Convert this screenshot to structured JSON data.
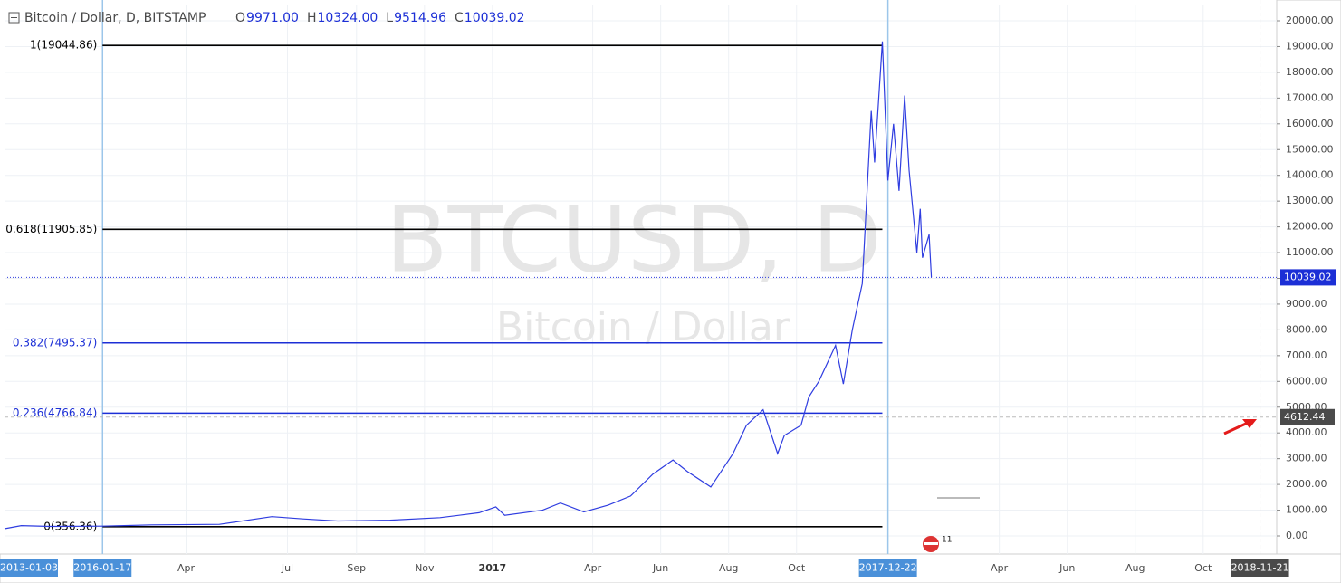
{
  "chart_data": {
    "type": "line",
    "title": "Bitcoin / Dollar, D, BITSTAMP",
    "ohlc": [
      {
        "key": "O",
        "value": "9971.00"
      },
      {
        "key": "H",
        "value": "10324.00"
      },
      {
        "key": "L",
        "value": "9514.96"
      },
      {
        "key": "C",
        "value": "10039.02"
      }
    ],
    "watermark": {
      "symbol": "BTCUSD, D",
      "name": "Bitcoin / Dollar"
    },
    "series": [
      {
        "name": "BTCUSD",
        "color": "#2f3de0",
        "x": [
          "2015-10-21",
          "2015-11-05",
          "2015-12-01",
          "2016-01-17",
          "2016-03-01",
          "2016-05-01",
          "2016-06-17",
          "2016-07-15",
          "2016-08-15",
          "2016-10-01",
          "2016-11-15",
          "2016-12-20",
          "2017-01-04",
          "2017-01-12",
          "2017-02-15",
          "2017-03-03",
          "2017-03-24",
          "2017-04-15",
          "2017-05-05",
          "2017-05-25",
          "2017-06-12",
          "2017-06-25",
          "2017-07-16",
          "2017-08-05",
          "2017-08-17",
          "2017-09-01",
          "2017-09-14",
          "2017-09-20",
          "2017-10-05",
          "2017-10-12",
          "2017-10-21",
          "2017-11-05",
          "2017-11-12",
          "2017-11-20",
          "2017-11-29",
          "2017-12-07",
          "2017-12-10",
          "2017-12-17",
          "2017-12-22",
          "2017-12-27",
          "2018-01-01",
          "2018-01-06",
          "2018-01-10",
          "2018-01-17",
          "2018-01-20",
          "2018-01-22",
          "2018-01-28",
          "2018-01-30"
        ],
        "values": [
          280,
          400,
          370,
          380,
          430,
          450,
          750,
          660,
          580,
          610,
          710,
          900,
          1130,
          800,
          1000,
          1280,
          930,
          1200,
          1550,
          2400,
          2950,
          2500,
          1900,
          3200,
          4300,
          4900,
          3200,
          3900,
          4300,
          5400,
          6000,
          7400,
          5900,
          8000,
          9800,
          16500,
          14500,
          19200,
          13800,
          16000,
          13400,
          17100,
          14200,
          11000,
          12700,
          10800,
          11700,
          10039
        ]
      }
    ],
    "fib_levels": {
      "start": "2016-01-17",
      "end": "2017-12-17",
      "labels": [
        "1(19044.86)",
        "0.618(11905.85)",
        "0.382(7495.37)",
        "0.236(4766.84)",
        "0(356.36)"
      ],
      "values": [
        19044.86,
        11905.85,
        7495.37,
        4766.84,
        356.36
      ],
      "colors": [
        "#000000",
        "#000000",
        "#1c2fd6",
        "#1c2fd6",
        "#000000"
      ]
    },
    "last_price": 10039.02,
    "crosshair": {
      "date": "2018-11-21",
      "price": 4612.44
    },
    "events_badge": "11",
    "markers": [
      {
        "date": "2013-01-03",
        "color": "#4a90d9"
      },
      {
        "date": "2016-01-17",
        "color": "#4a90d9"
      },
      {
        "date": "2017-12-22",
        "color": "#4a90d9"
      },
      {
        "date": "2018-11-21",
        "color": "#4a4a4a"
      }
    ],
    "xlim": [
      "2015-10-21",
      "2018-12-06"
    ],
    "xticks": [
      {
        "value": "2016-04-01",
        "label": "Apr"
      },
      {
        "value": "2016-07-01",
        "label": "Jul"
      },
      {
        "value": "2016-09-01",
        "label": "Sep"
      },
      {
        "value": "2016-11-01",
        "label": "Nov"
      },
      {
        "value": "2017-01-01",
        "label": "2017"
      },
      {
        "value": "2017-04-01",
        "label": "Apr"
      },
      {
        "value": "2017-06-01",
        "label": "Jun"
      },
      {
        "value": "2017-08-01",
        "label": "Aug"
      },
      {
        "value": "2017-10-01",
        "label": "Oct"
      },
      {
        "value": "2018-04-01",
        "label": "Apr"
      },
      {
        "value": "2018-06-01",
        "label": "Jun"
      },
      {
        "value": "2018-08-01",
        "label": "Aug"
      },
      {
        "value": "2018-10-01",
        "label": "Oct"
      }
    ],
    "ylim": [
      -703,
      20633
    ],
    "yticks": [
      {
        "value": 0,
        "label": "0.00"
      },
      {
        "value": 1000,
        "label": "1000.00"
      },
      {
        "value": 2000,
        "label": "2000.00"
      },
      {
        "value": 3000,
        "label": "3000.00"
      },
      {
        "value": 4000,
        "label": "4000.00"
      },
      {
        "value": 5000,
        "label": "5000.00"
      },
      {
        "value": 6000,
        "label": "6000.00"
      },
      {
        "value": 7000,
        "label": "7000.00"
      },
      {
        "value": 8000,
        "label": "8000.00"
      },
      {
        "value": 9000,
        "label": "9000.00"
      },
      {
        "value": 10000,
        "label": "10000.00"
      },
      {
        "value": 11000,
        "label": "11000.00"
      },
      {
        "value": 12000,
        "label": "12000.00"
      },
      {
        "value": 13000,
        "label": "13000.00"
      },
      {
        "value": 14000,
        "label": "14000.00"
      },
      {
        "value": 15000,
        "label": "15000.00"
      },
      {
        "value": 16000,
        "label": "16000.00"
      },
      {
        "value": 17000,
        "label": "17000.00"
      },
      {
        "value": 18000,
        "label": "18000.00"
      },
      {
        "value": 19000,
        "label": "19000.00"
      },
      {
        "value": 20000,
        "label": "20000.00"
      }
    ],
    "grid": true
  }
}
